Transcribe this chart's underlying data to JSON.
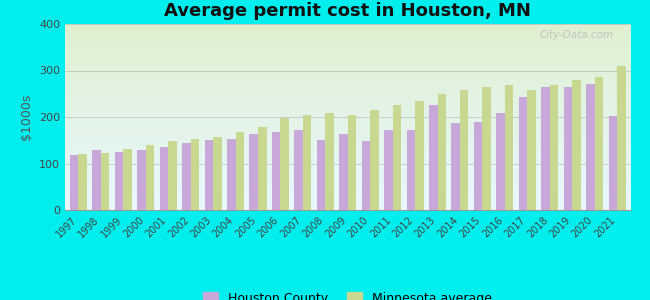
{
  "title": "Average permit cost in Houston, MN",
  "ylabel": "$1000s",
  "background_color": "#00EEEE",
  "plot_bg_color_top": "#dff0d0",
  "plot_bg_color_bottom": "#e8f8ff",
  "years": [
    1997,
    1998,
    1999,
    2000,
    2001,
    2002,
    2003,
    2004,
    2005,
    2006,
    2007,
    2008,
    2009,
    2010,
    2011,
    2012,
    2013,
    2014,
    2015,
    2016,
    2017,
    2018,
    2019,
    2020,
    2021
  ],
  "houston_county": [
    118,
    128,
    125,
    130,
    135,
    145,
    150,
    152,
    163,
    168,
    172,
    150,
    163,
    148,
    172,
    172,
    225,
    188,
    190,
    208,
    243,
    265,
    265,
    270,
    202
  ],
  "mn_average": [
    120,
    122,
    132,
    140,
    148,
    152,
    158,
    168,
    178,
    198,
    205,
    208,
    205,
    215,
    225,
    235,
    250,
    258,
    265,
    268,
    258,
    268,
    280,
    285,
    310
  ],
  "houston_color": "#c8a8d8",
  "mn_color": "#c8d890",
  "bar_width": 0.38,
  "ylim": [
    0,
    400
  ],
  "yticks": [
    0,
    100,
    200,
    300,
    400
  ],
  "title_fontsize": 13,
  "watermark": "City-Data.com",
  "legend_labels": [
    "Houston County",
    "Minnesota average"
  ]
}
